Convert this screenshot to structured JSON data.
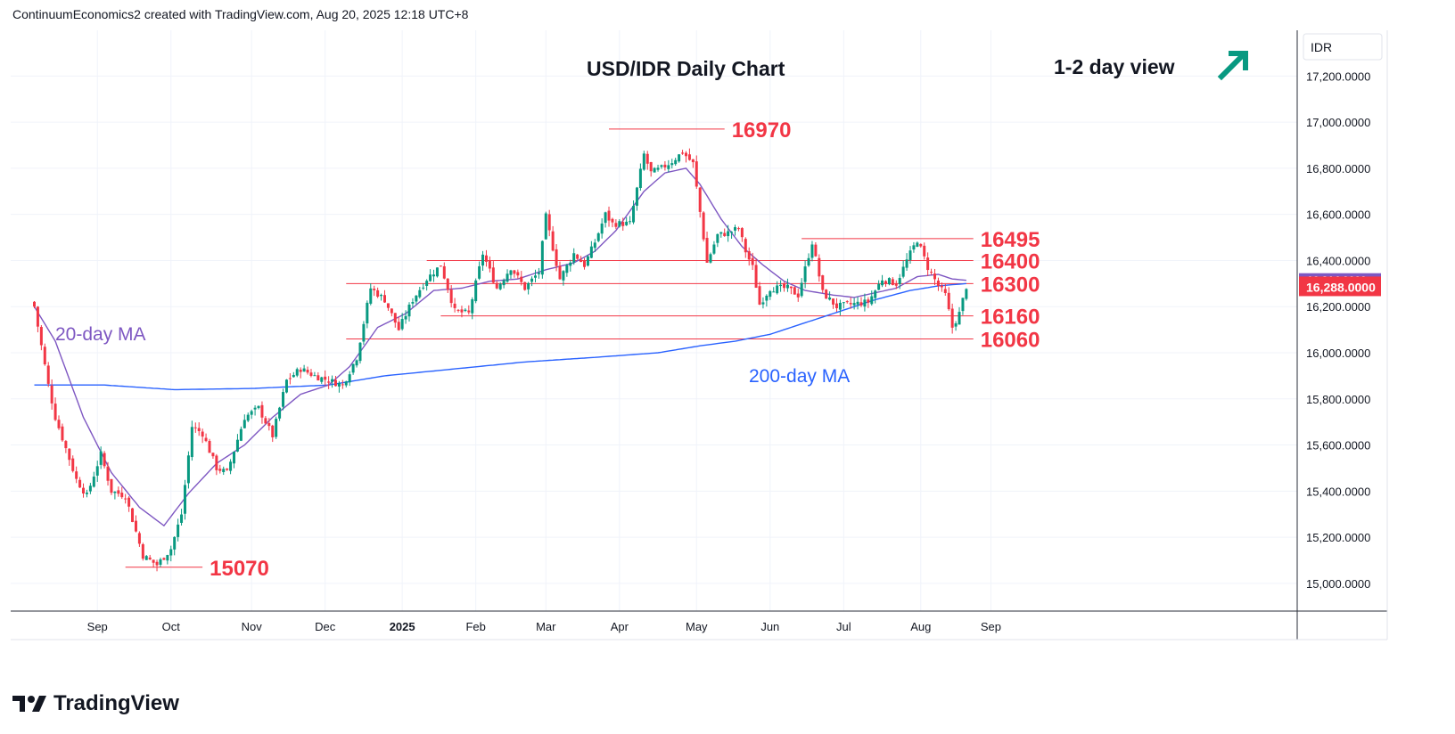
{
  "header": {
    "attribution": "ContinuumEconomics2 created with TradingView.com, Aug 20, 2025 12:18 UTC+8"
  },
  "footer": {
    "brand": "TradingView"
  },
  "colors": {
    "up": "#089981",
    "down": "#f23645",
    "ma20": "#7e57c2",
    "ma200": "#2962ff",
    "level_line": "#f23645",
    "level_label": "#f23645",
    "arrow": "#089981",
    "grid": "#f0f3fa",
    "price_tag_bg": "#f23645"
  },
  "chart_data": {
    "type": "candlestick",
    "title": "USD/IDR Daily Chart",
    "view_label": "1-2 day view",
    "view_icon": "arrow-up-right-icon",
    "currency": "IDR",
    "ylim": [
      14870,
      17540
    ],
    "y_ticks": [
      "17,200.0000",
      "17,000.0000",
      "16,800.0000",
      "16,600.0000",
      "16,400.0000",
      "16,200.0000",
      "16,000.0000",
      "15,800.0000",
      "15,600.0000",
      "15,400.0000",
      "15,200.0000",
      "15,000.0000"
    ],
    "y_tick_values": [
      17200,
      17000,
      16800,
      16600,
      16400,
      16200,
      16000,
      15800,
      15600,
      15400,
      15200,
      15000
    ],
    "x_ticks": [
      "Sep",
      "Oct",
      "Nov",
      "Dec",
      "2025",
      "Feb",
      "Mar",
      "Apr",
      "May",
      "Jun",
      "Jul",
      "Aug",
      "Sep"
    ],
    "x_tick_bar_index": [
      18,
      39,
      62,
      83,
      105,
      126,
      146,
      167,
      189,
      210,
      231,
      253,
      273
    ],
    "bar_count": 290,
    "last_price_label": "16,288.0000",
    "secondary_price_label": "16,314.0000",
    "annotations": [
      {
        "label": "20-day MA",
        "color": "#7e57c2",
        "anchor_bar": 21,
        "price": 16270
      },
      {
        "label": "200-day MA",
        "color": "#2962ff",
        "anchor_bar": 178,
        "price": 15960
      }
    ],
    "levels": [
      {
        "value": "16970",
        "price": 16970,
        "start_bar": 164,
        "end_bar": 197
      },
      {
        "value": "16495",
        "price": 16495,
        "start_bar": 219,
        "end_bar": 268
      },
      {
        "value": "16400",
        "price": 16400,
        "start_bar": 112,
        "end_bar": 268
      },
      {
        "value": "16300",
        "price": 16300,
        "start_bar": 89,
        "end_bar": 268
      },
      {
        "value": "16160",
        "price": 16160,
        "start_bar": 116,
        "end_bar": 268
      },
      {
        "value": "16060",
        "price": 16060,
        "start_bar": 89,
        "end_bar": 268
      },
      {
        "value": "15070",
        "price": 15070,
        "start_bar": 26,
        "end_bar": 48
      }
    ],
    "close_anchors": [
      [
        0,
        16200
      ],
      [
        4,
        15860
      ],
      [
        6,
        15720
      ],
      [
        12,
        15450
      ],
      [
        15,
        15380
      ],
      [
        19,
        15560
      ],
      [
        22,
        15400
      ],
      [
        26,
        15380
      ],
      [
        31,
        15120
      ],
      [
        35,
        15080
      ],
      [
        39,
        15150
      ],
      [
        42,
        15300
      ],
      [
        45,
        15680
      ],
      [
        48,
        15650
      ],
      [
        52,
        15500
      ],
      [
        55,
        15480
      ],
      [
        60,
        15720
      ],
      [
        64,
        15760
      ],
      [
        68,
        15640
      ],
      [
        72,
        15880
      ],
      [
        76,
        15930
      ],
      [
        80,
        15900
      ],
      [
        84,
        15880
      ],
      [
        88,
        15860
      ],
      [
        92,
        15980
      ],
      [
        96,
        16280
      ],
      [
        100,
        16230
      ],
      [
        104,
        16100
      ],
      [
        108,
        16230
      ],
      [
        112,
        16320
      ],
      [
        116,
        16380
      ],
      [
        120,
        16180
      ],
      [
        124,
        16170
      ],
      [
        128,
        16430
      ],
      [
        132,
        16280
      ],
      [
        136,
        16370
      ],
      [
        140,
        16280
      ],
      [
        144,
        16350
      ],
      [
        146,
        16590
      ],
      [
        150,
        16320
      ],
      [
        154,
        16430
      ],
      [
        157,
        16380
      ],
      [
        160,
        16480
      ],
      [
        163,
        16600
      ],
      [
        165,
        16560
      ],
      [
        170,
        16560
      ],
      [
        174,
        16860
      ],
      [
        176,
        16780
      ],
      [
        179,
        16800
      ],
      [
        182,
        16830
      ],
      [
        185,
        16870
      ],
      [
        188,
        16820
      ],
      [
        190,
        16610
      ],
      [
        192,
        16390
      ],
      [
        195,
        16510
      ],
      [
        198,
        16520
      ],
      [
        201,
        16540
      ],
      [
        203,
        16440
      ],
      [
        205,
        16370
      ],
      [
        207,
        16210
      ],
      [
        210,
        16280
      ],
      [
        215,
        16280
      ],
      [
        218,
        16250
      ],
      [
        222,
        16480
      ],
      [
        225,
        16260
      ],
      [
        229,
        16200
      ],
      [
        233,
        16210
      ],
      [
        238,
        16220
      ],
      [
        242,
        16320
      ],
      [
        246,
        16300
      ],
      [
        249,
        16400
      ],
      [
        252,
        16490
      ],
      [
        255,
        16370
      ],
      [
        258,
        16290
      ],
      [
        260,
        16250
      ],
      [
        262,
        16110
      ],
      [
        264,
        16170
      ],
      [
        266,
        16288
      ]
    ],
    "ma20_anchors": [
      [
        0,
        16200
      ],
      [
        6,
        16050
      ],
      [
        14,
        15720
      ],
      [
        22,
        15480
      ],
      [
        30,
        15330
      ],
      [
        37,
        15250
      ],
      [
        44,
        15390
      ],
      [
        52,
        15520
      ],
      [
        60,
        15600
      ],
      [
        68,
        15720
      ],
      [
        76,
        15820
      ],
      [
        84,
        15860
      ],
      [
        90,
        15940
      ],
      [
        98,
        16110
      ],
      [
        106,
        16170
      ],
      [
        114,
        16270
      ],
      [
        122,
        16280
      ],
      [
        130,
        16310
      ],
      [
        138,
        16320
      ],
      [
        146,
        16360
      ],
      [
        154,
        16390
      ],
      [
        160,
        16440
      ],
      [
        166,
        16530
      ],
      [
        174,
        16700
      ],
      [
        180,
        16780
      ],
      [
        186,
        16800
      ],
      [
        190,
        16730
      ],
      [
        196,
        16580
      ],
      [
        202,
        16460
      ],
      [
        208,
        16380
      ],
      [
        214,
        16310
      ],
      [
        220,
        16270
      ],
      [
        228,
        16250
      ],
      [
        234,
        16240
      ],
      [
        240,
        16260
      ],
      [
        246,
        16280
      ],
      [
        252,
        16330
      ],
      [
        258,
        16340
      ],
      [
        262,
        16320
      ],
      [
        266,
        16314
      ]
    ],
    "ma200_anchors": [
      [
        0,
        15860
      ],
      [
        20,
        15860
      ],
      [
        40,
        15840
      ],
      [
        62,
        15845
      ],
      [
        84,
        15860
      ],
      [
        100,
        15900
      ],
      [
        120,
        15930
      ],
      [
        140,
        15960
      ],
      [
        160,
        15980
      ],
      [
        178,
        16000
      ],
      [
        190,
        16030
      ],
      [
        200,
        16050
      ],
      [
        210,
        16080
      ],
      [
        220,
        16130
      ],
      [
        230,
        16180
      ],
      [
        240,
        16230
      ],
      [
        250,
        16270
      ],
      [
        258,
        16290
      ],
      [
        266,
        16300
      ]
    ]
  }
}
